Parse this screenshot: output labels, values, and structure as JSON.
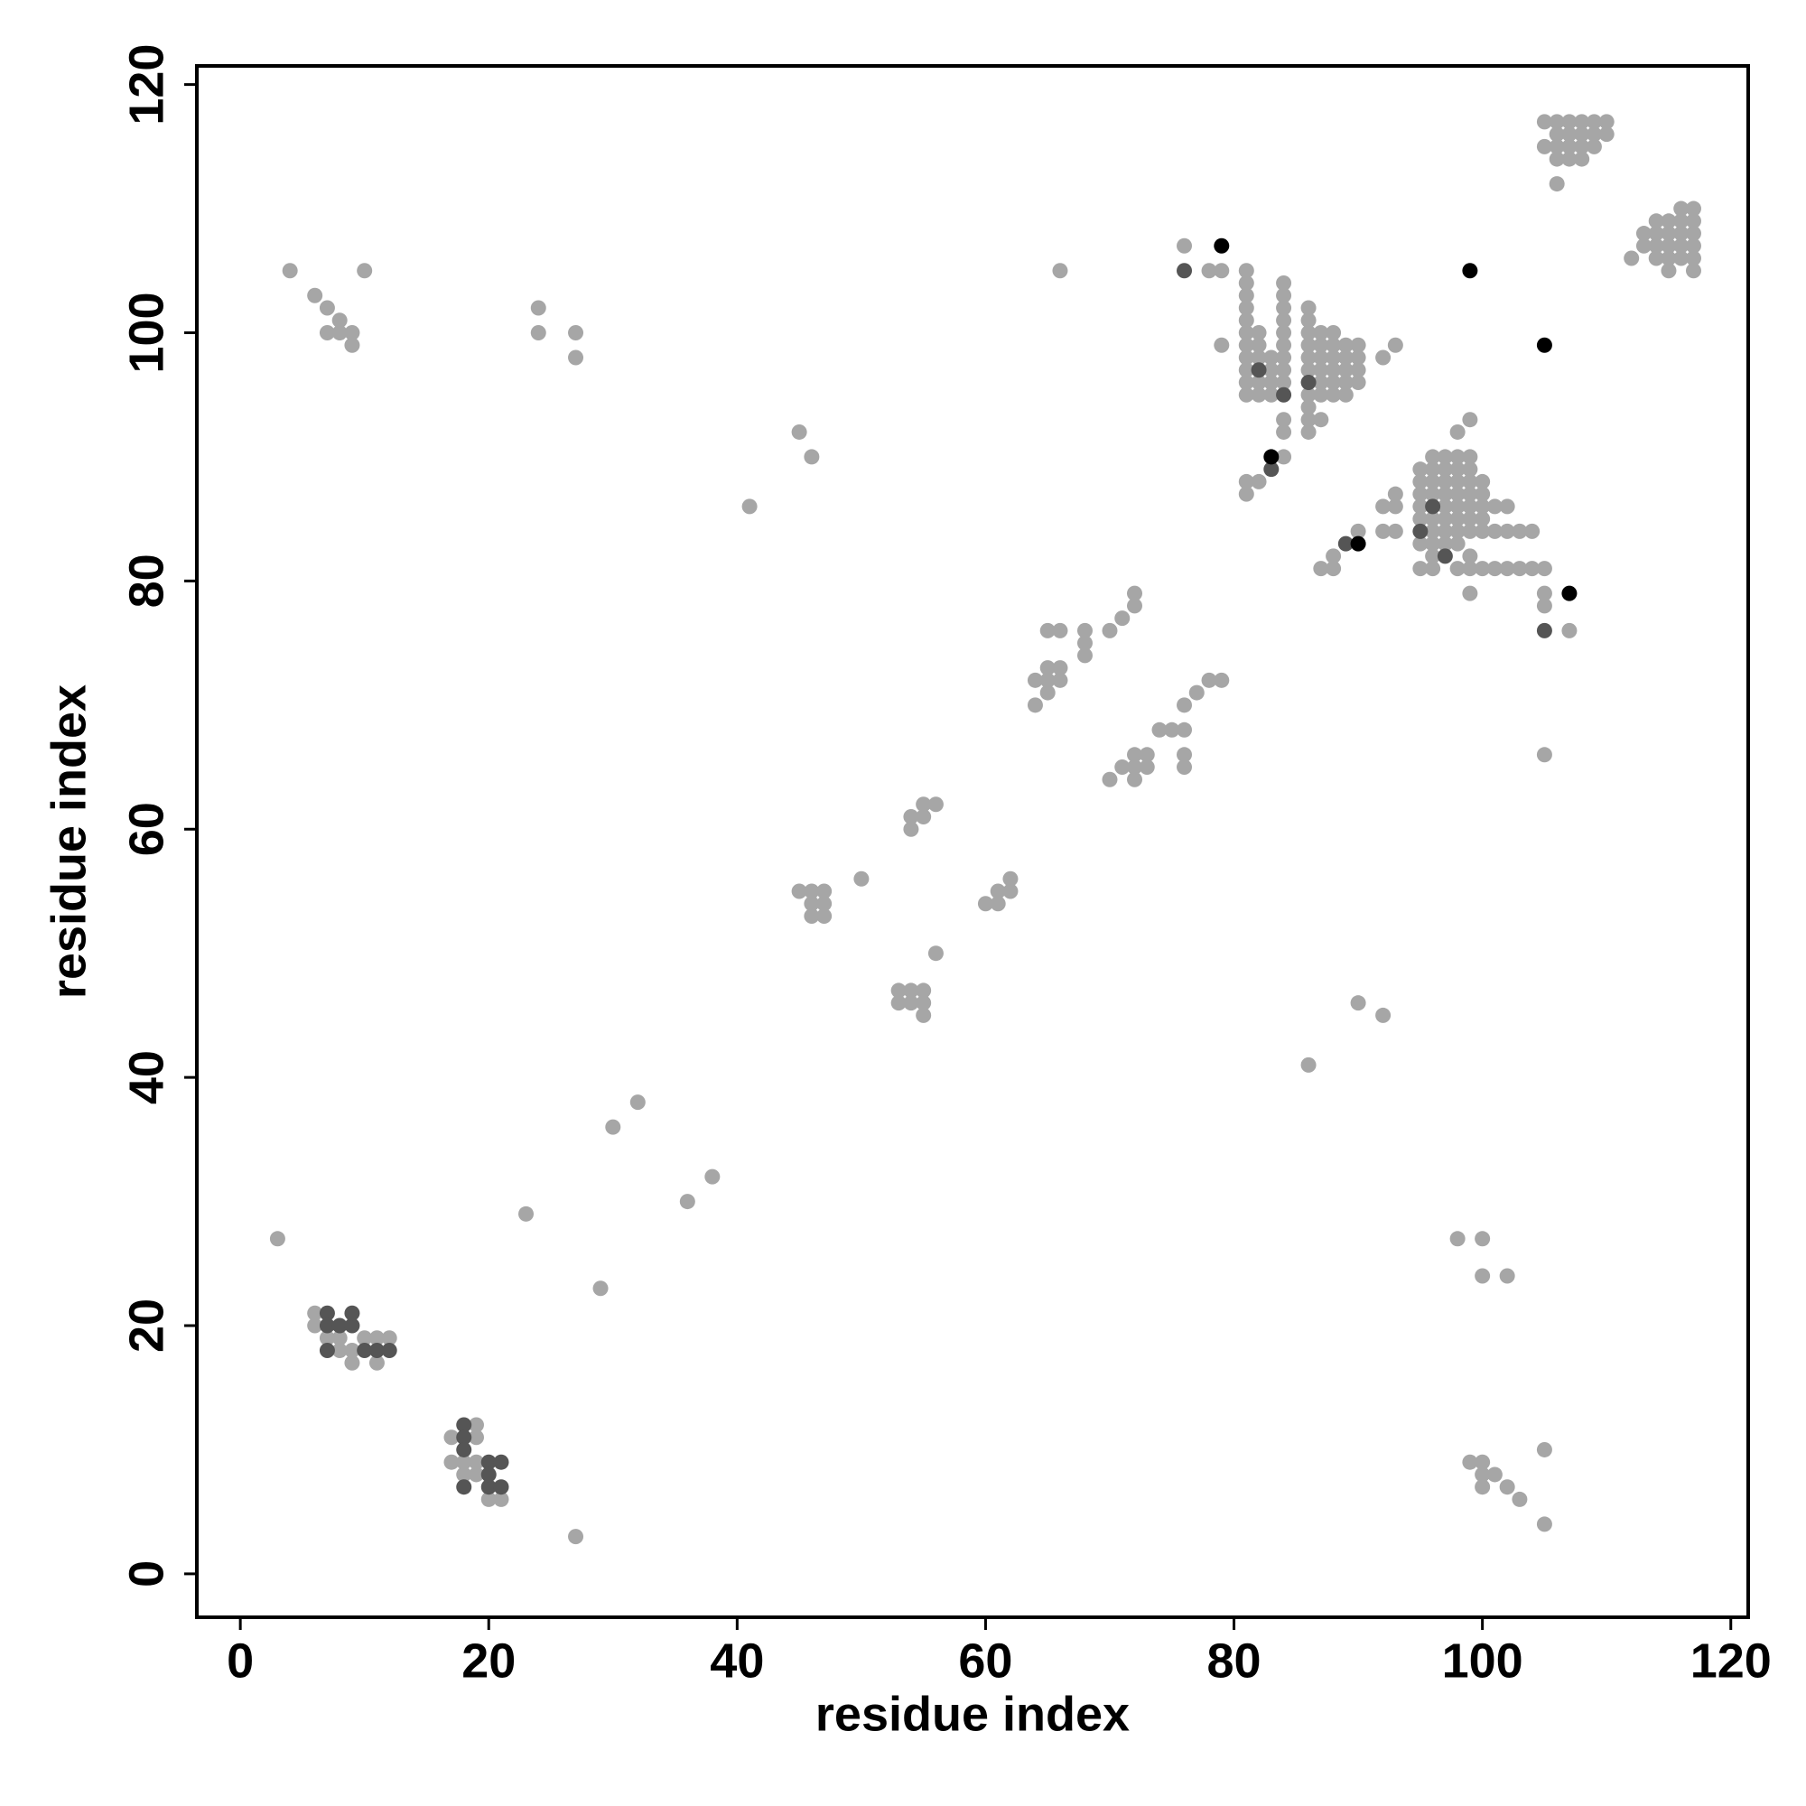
{
  "chart_data": {
    "type": "scatter",
    "x_label": "residue index",
    "y_label": "residue index",
    "xlim": [
      -3.5,
      121.4
    ],
    "ylim": [
      -3.5,
      121.5
    ],
    "xticks": [
      0,
      20,
      40,
      60,
      80,
      100,
      120
    ],
    "yticks": [
      0,
      20,
      40,
      60,
      80,
      100,
      120
    ],
    "series": [
      {
        "color": "#a6a6a6",
        "x": [
          4,
          6,
          7,
          8,
          7,
          8,
          9,
          9,
          10,
          24,
          24,
          27,
          27,
          45,
          46,
          41,
          66,
          76,
          78,
          79,
          79,
          81,
          81,
          81,
          81,
          81,
          81,
          81,
          81,
          81,
          81,
          81,
          82,
          82,
          82,
          82,
          82,
          83,
          83,
          83,
          83,
          84,
          84,
          84,
          84,
          84,
          84,
          84,
          84,
          84,
          84,
          84,
          86,
          86,
          86,
          86,
          86,
          86,
          86,
          86,
          86,
          87,
          87,
          87,
          87,
          87,
          87,
          87,
          88,
          88,
          88,
          88,
          88,
          88,
          89,
          89,
          89,
          89,
          89,
          90,
          90,
          90,
          90,
          92,
          93,
          84,
          81,
          81,
          82,
          86,
          105,
          105,
          106,
          106,
          106,
          106,
          107,
          107,
          107,
          107,
          108,
          108,
          108,
          108,
          109,
          109,
          109,
          110,
          110,
          106,
          112,
          113,
          113,
          114,
          114,
          114,
          114,
          115,
          115,
          115,
          115,
          115,
          116,
          116,
          116,
          116,
          116,
          117,
          117,
          117,
          117,
          117,
          117,
          95,
          95,
          95,
          95,
          95,
          95,
          95,
          96,
          96,
          96,
          96,
          96,
          96,
          96,
          96,
          96,
          97,
          97,
          97,
          97,
          97,
          97,
          97,
          97,
          98,
          98,
          98,
          98,
          98,
          98,
          98,
          98,
          98,
          99,
          99,
          99,
          99,
          99,
          99,
          99,
          99,
          99,
          100,
          100,
          100,
          100,
          100,
          100,
          101,
          101,
          101,
          102,
          102,
          102,
          103,
          103,
          104,
          104,
          105,
          105,
          105,
          92,
          93,
          93,
          92,
          93,
          90,
          88,
          88,
          87,
          99,
          99,
          98,
          107,
          105,
          64,
          64,
          65,
          65,
          65,
          65,
          66,
          66,
          66,
          68,
          68,
          68,
          70,
          71,
          72,
          72,
          70,
          71,
          72,
          72,
          72,
          73,
          73,
          74,
          75,
          76,
          76,
          76,
          76,
          77,
          78,
          79,
          54,
          54,
          55,
          55,
          56,
          45,
          46,
          46,
          46,
          47,
          47,
          47,
          50,
          60,
          61,
          61,
          62,
          62,
          53,
          53,
          54,
          54,
          55,
          55,
          55,
          56,
          86,
          90,
          92,
          30,
          32,
          36,
          38,
          23,
          29,
          3,
          27,
          98,
          100,
          100,
          102,
          99,
          100,
          100,
          100,
          101,
          102,
          103,
          105,
          105,
          6,
          6,
          8,
          8,
          9,
          10,
          11,
          12,
          9,
          11,
          7,
          17,
          17,
          19,
          19,
          18,
          19,
          19,
          20,
          21,
          18
        ],
        "values": [
          105,
          103,
          102,
          101,
          100,
          100,
          100,
          99,
          105,
          102,
          100,
          100,
          98,
          92,
          90,
          86,
          105,
          107,
          105,
          105,
          99,
          95,
          96,
          97,
          98,
          99,
          100,
          101,
          102,
          103,
          104,
          105,
          95,
          96,
          98,
          99,
          100,
          95,
          96,
          97,
          98,
          92,
          93,
          96,
          97,
          98,
          99,
          100,
          101,
          102,
          103,
          104,
          93,
          94,
          95,
          97,
          98,
          99,
          100,
          101,
          102,
          93,
          95,
          96,
          97,
          98,
          99,
          100,
          95,
          96,
          97,
          98,
          99,
          100,
          95,
          96,
          97,
          98,
          99,
          96,
          97,
          98,
          99,
          98,
          99,
          90,
          87,
          88,
          88,
          92,
          115,
          117,
          114,
          115,
          116,
          117,
          114,
          115,
          116,
          117,
          114,
          115,
          116,
          117,
          115,
          116,
          117,
          116,
          117,
          112,
          106,
          107,
          108,
          106,
          107,
          108,
          109,
          105,
          106,
          107,
          108,
          109,
          106,
          107,
          108,
          109,
          110,
          105,
          106,
          107,
          108,
          109,
          110,
          81,
          83,
          85,
          86,
          87,
          88,
          89,
          81,
          82,
          83,
          84,
          85,
          87,
          88,
          89,
          90,
          83,
          84,
          85,
          86,
          87,
          88,
          89,
          90,
          81,
          83,
          84,
          85,
          86,
          87,
          88,
          89,
          90,
          81,
          82,
          84,
          85,
          86,
          87,
          88,
          89,
          90,
          81,
          84,
          85,
          86,
          87,
          88,
          81,
          84,
          86,
          81,
          84,
          86,
          81,
          84,
          81,
          84,
          78,
          79,
          81,
          86,
          86,
          87,
          84,
          84,
          84,
          81,
          82,
          81,
          79,
          93,
          92,
          76,
          66,
          70,
          72,
          71,
          72,
          73,
          76,
          72,
          73,
          76,
          74,
          75,
          76,
          76,
          77,
          78,
          79,
          64,
          65,
          64,
          65,
          66,
          65,
          66,
          68,
          68,
          68,
          66,
          65,
          70,
          71,
          72,
          72,
          60,
          61,
          61,
          62,
          62,
          55,
          54,
          53,
          55,
          53,
          54,
          55,
          56,
          54,
          54,
          55,
          55,
          56,
          47,
          46,
          46,
          47,
          47,
          46,
          45,
          50,
          41,
          46,
          45,
          36,
          38,
          30,
          32,
          29,
          23,
          27,
          3,
          27,
          27,
          24,
          24,
          9,
          9,
          7,
          8,
          8,
          7,
          6,
          10,
          4,
          21,
          20,
          19,
          18,
          18,
          19,
          19,
          19,
          17,
          17,
          19,
          11,
          9,
          12,
          11,
          9,
          8,
          9,
          6,
          6,
          8
        ]
      },
      {
        "color": "#555555",
        "x": [
          76,
          82,
          84,
          86,
          83,
          89,
          95,
          96,
          97,
          105,
          7,
          7,
          8,
          9,
          9,
          7,
          10,
          11,
          12,
          18,
          18,
          18,
          20,
          21,
          20,
          21,
          18,
          20
        ],
        "values": [
          105,
          97,
          95,
          96,
          89,
          83,
          84,
          86,
          82,
          76,
          21,
          20,
          20,
          20,
          21,
          18,
          18,
          18,
          18,
          12,
          11,
          10,
          9,
          9,
          7,
          7,
          7,
          8
        ]
      },
      {
        "color": "#000000",
        "x": [
          79,
          83,
          90,
          99,
          105,
          107
        ],
        "values": [
          107,
          90,
          83,
          105,
          99,
          79
        ]
      }
    ]
  }
}
